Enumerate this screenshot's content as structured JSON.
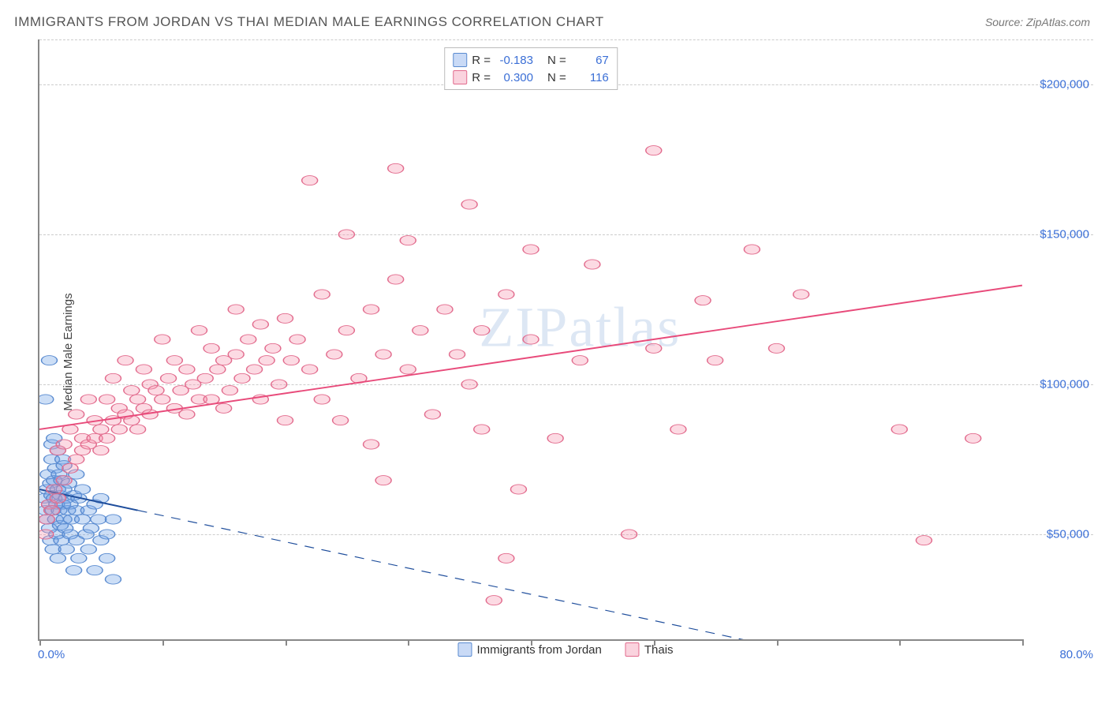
{
  "title": "IMMIGRANTS FROM JORDAN VS THAI MEDIAN MALE EARNINGS CORRELATION CHART",
  "source": "Source: ZipAtlas.com",
  "watermark": "ZIPatlas",
  "chart": {
    "type": "scatter",
    "ylabel": "Median Male Earnings",
    "xlim": [
      0,
      80
    ],
    "ylim": [
      15000,
      215000
    ],
    "x_min_label": "0.0%",
    "x_max_label": "80.0%",
    "xtick_positions": [
      0,
      10,
      20,
      30,
      40,
      50,
      60,
      70,
      80
    ],
    "ytick_positions": [
      50000,
      100000,
      150000,
      200000
    ],
    "ytick_labels": [
      "$50,000",
      "$100,000",
      "$150,000",
      "$200,000"
    ],
    "grid_color": "#cccccc",
    "axis_color": "#888888",
    "background_color": "#ffffff",
    "label_color": "#3b6fd6",
    "marker_radius": 8,
    "marker_stroke_width": 1.2,
    "series": [
      {
        "name": "Immigrants from Jordan",
        "short": "blue",
        "fill": "rgba(110,160,230,0.35)",
        "stroke": "#5a8bd0",
        "r_value": "-0.183",
        "n_value": "67",
        "trend": {
          "x1": 0,
          "y1": 65000,
          "x2": 80,
          "y2": -5000,
          "color": "#1f4e9c",
          "width": 2.5,
          "solid_until_x": 8
        },
        "points": [
          [
            0.4,
            62000
          ],
          [
            0.5,
            58000
          ],
          [
            0.6,
            65000
          ],
          [
            0.6,
            55000
          ],
          [
            0.7,
            70000
          ],
          [
            0.8,
            60000
          ],
          [
            0.8,
            52000
          ],
          [
            0.9,
            67000
          ],
          [
            0.9,
            48000
          ],
          [
            1.0,
            63000
          ],
          [
            1.0,
            75000
          ],
          [
            1.1,
            58000
          ],
          [
            1.1,
            45000
          ],
          [
            1.2,
            62000
          ],
          [
            1.2,
            68000
          ],
          [
            1.3,
            55000
          ],
          [
            1.3,
            72000
          ],
          [
            1.4,
            50000
          ],
          [
            1.4,
            60000
          ],
          [
            1.5,
            65000
          ],
          [
            1.5,
            42000
          ],
          [
            1.6,
            58000
          ],
          [
            1.6,
            70000
          ],
          [
            1.7,
            53000
          ],
          [
            1.7,
            63000
          ],
          [
            1.8,
            68000
          ],
          [
            1.8,
            48000
          ],
          [
            1.9,
            60000
          ],
          [
            1.9,
            75000
          ],
          [
            2.0,
            55000
          ],
          [
            2.0,
            65000
          ],
          [
            2.1,
            52000
          ],
          [
            2.2,
            62000
          ],
          [
            2.2,
            45000
          ],
          [
            2.3,
            58000
          ],
          [
            2.4,
            67000
          ],
          [
            2.5,
            50000
          ],
          [
            2.5,
            60000
          ],
          [
            2.6,
            55000
          ],
          [
            2.8,
            63000
          ],
          [
            2.8,
            38000
          ],
          [
            3.0,
            58000
          ],
          [
            3.0,
            48000
          ],
          [
            3.2,
            62000
          ],
          [
            3.2,
            42000
          ],
          [
            3.5,
            55000
          ],
          [
            3.5,
            65000
          ],
          [
            3.8,
            50000
          ],
          [
            4.0,
            58000
          ],
          [
            4.0,
            45000
          ],
          [
            4.2,
            52000
          ],
          [
            4.5,
            60000
          ],
          [
            4.5,
            38000
          ],
          [
            4.8,
            55000
          ],
          [
            5.0,
            48000
          ],
          [
            5.0,
            62000
          ],
          [
            5.5,
            50000
          ],
          [
            5.5,
            42000
          ],
          [
            6.0,
            55000
          ],
          [
            6.0,
            35000
          ],
          [
            0.5,
            95000
          ],
          [
            0.8,
            108000
          ],
          [
            1.0,
            80000
          ],
          [
            1.2,
            82000
          ],
          [
            1.5,
            78000
          ],
          [
            2.0,
            73000
          ],
          [
            3.0,
            70000
          ]
        ]
      },
      {
        "name": "Thais",
        "short": "pink",
        "fill": "rgba(245,150,175,0.35)",
        "stroke": "#e26b8d",
        "r_value": "0.300",
        "n_value": "116",
        "trend": {
          "x1": 0,
          "y1": 85000,
          "x2": 80,
          "y2": 133000,
          "color": "#e84a7a",
          "width": 2.5
        },
        "points": [
          [
            0.5,
            50000
          ],
          [
            0.6,
            55000
          ],
          [
            0.8,
            60000
          ],
          [
            1.0,
            58000
          ],
          [
            1.2,
            65000
          ],
          [
            1.5,
            62000
          ],
          [
            1.5,
            78000
          ],
          [
            2.0,
            68000
          ],
          [
            2.0,
            80000
          ],
          [
            2.5,
            72000
          ],
          [
            2.5,
            85000
          ],
          [
            3.0,
            75000
          ],
          [
            3.0,
            90000
          ],
          [
            3.5,
            78000
          ],
          [
            3.5,
            82000
          ],
          [
            4.0,
            80000
          ],
          [
            4.0,
            95000
          ],
          [
            4.5,
            82000
          ],
          [
            4.5,
            88000
          ],
          [
            5.0,
            85000
          ],
          [
            5.0,
            78000
          ],
          [
            5.5,
            82000
          ],
          [
            5.5,
            95000
          ],
          [
            6.0,
            88000
          ],
          [
            6.0,
            102000
          ],
          [
            6.5,
            85000
          ],
          [
            6.5,
            92000
          ],
          [
            7.0,
            90000
          ],
          [
            7.0,
            108000
          ],
          [
            7.5,
            88000
          ],
          [
            7.5,
            98000
          ],
          [
            8.0,
            95000
          ],
          [
            8.0,
            85000
          ],
          [
            8.5,
            92000
          ],
          [
            8.5,
            105000
          ],
          [
            9.0,
            90000
          ],
          [
            9.0,
            100000
          ],
          [
            9.5,
            98000
          ],
          [
            10.0,
            95000
          ],
          [
            10.0,
            115000
          ],
          [
            10.5,
            102000
          ],
          [
            11.0,
            92000
          ],
          [
            11.0,
            108000
          ],
          [
            11.5,
            98000
          ],
          [
            12.0,
            105000
          ],
          [
            12.0,
            90000
          ],
          [
            12.5,
            100000
          ],
          [
            13.0,
            95000
          ],
          [
            13.0,
            118000
          ],
          [
            13.5,
            102000
          ],
          [
            14.0,
            112000
          ],
          [
            14.0,
            95000
          ],
          [
            14.5,
            105000
          ],
          [
            15.0,
            108000
          ],
          [
            15.0,
            92000
          ],
          [
            15.5,
            98000
          ],
          [
            16.0,
            110000
          ],
          [
            16.0,
            125000
          ],
          [
            16.5,
            102000
          ],
          [
            17.0,
            115000
          ],
          [
            17.5,
            105000
          ],
          [
            18.0,
            95000
          ],
          [
            18.0,
            120000
          ],
          [
            18.5,
            108000
          ],
          [
            19.0,
            112000
          ],
          [
            19.5,
            100000
          ],
          [
            20.0,
            122000
          ],
          [
            20.0,
            88000
          ],
          [
            20.5,
            108000
          ],
          [
            21.0,
            115000
          ],
          [
            22.0,
            105000
          ],
          [
            22.0,
            168000
          ],
          [
            23.0,
            95000
          ],
          [
            23.0,
            130000
          ],
          [
            24.0,
            110000
          ],
          [
            24.5,
            88000
          ],
          [
            25.0,
            118000
          ],
          [
            25.0,
            150000
          ],
          [
            26.0,
            102000
          ],
          [
            27.0,
            125000
          ],
          [
            27.0,
            80000
          ],
          [
            28.0,
            110000
          ],
          [
            28.0,
            68000
          ],
          [
            29.0,
            135000
          ],
          [
            29.0,
            172000
          ],
          [
            30.0,
            105000
          ],
          [
            30.0,
            148000
          ],
          [
            31.0,
            118000
          ],
          [
            32.0,
            90000
          ],
          [
            33.0,
            125000
          ],
          [
            34.0,
            110000
          ],
          [
            35.0,
            100000
          ],
          [
            35.0,
            160000
          ],
          [
            36.0,
            85000
          ],
          [
            36.0,
            118000
          ],
          [
            37.0,
            28000
          ],
          [
            38.0,
            42000
          ],
          [
            38.0,
            130000
          ],
          [
            39.0,
            65000
          ],
          [
            40.0,
            115000
          ],
          [
            40.0,
            145000
          ],
          [
            42.0,
            82000
          ],
          [
            44.0,
            108000
          ],
          [
            45.0,
            140000
          ],
          [
            48.0,
            50000
          ],
          [
            50.0,
            112000
          ],
          [
            50.0,
            178000
          ],
          [
            52.0,
            85000
          ],
          [
            54.0,
            128000
          ],
          [
            55.0,
            108000
          ],
          [
            58.0,
            145000
          ],
          [
            60.0,
            112000
          ],
          [
            62.0,
            130000
          ],
          [
            70.0,
            85000
          ],
          [
            72.0,
            48000
          ],
          [
            76.0,
            82000
          ]
        ]
      }
    ],
    "legend": {
      "items": [
        "Immigrants from Jordan",
        "Thais"
      ]
    }
  }
}
